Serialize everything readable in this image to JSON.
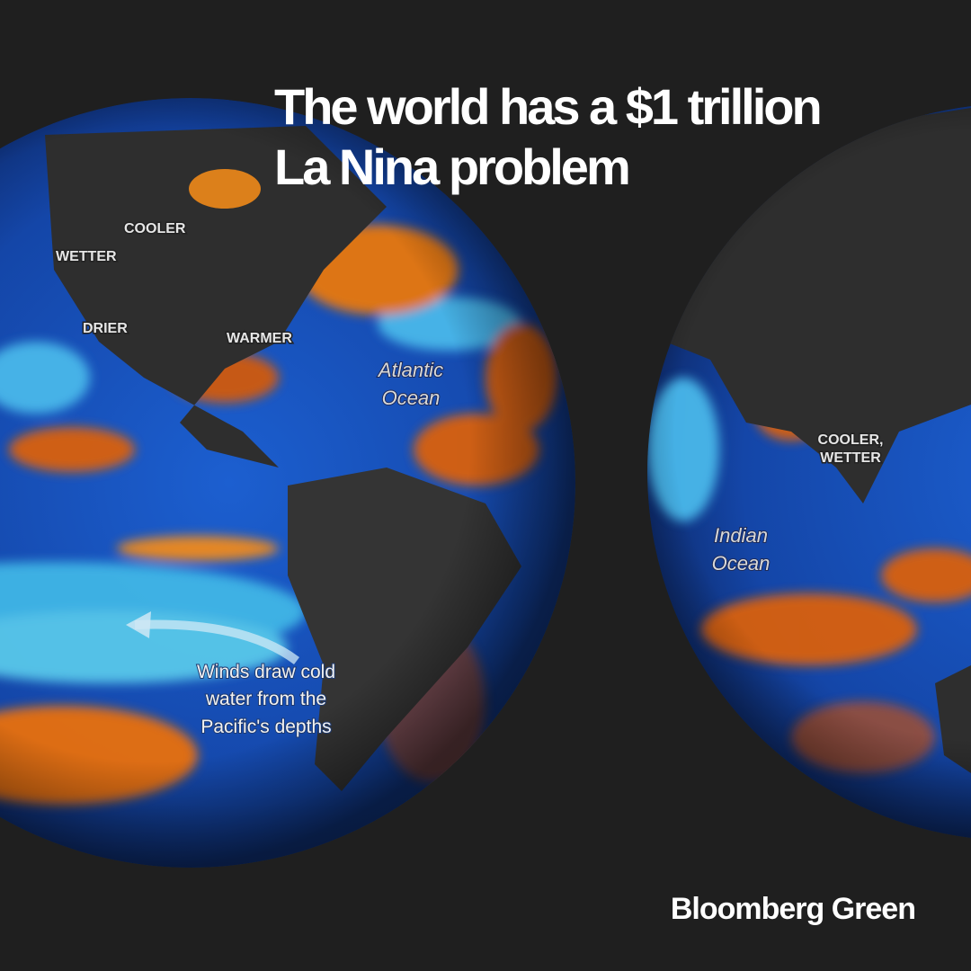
{
  "title": {
    "lines": [
      "The world has a $1 trillion",
      "La Nina problem"
    ]
  },
  "left_globe": {
    "labels": [
      "COOLER",
      "WETTER",
      "DRIER",
      "WARMER"
    ],
    "ocean_label": [
      "Atlantic",
      "Ocean"
    ],
    "annotation": [
      "Winds draw cold",
      "water from the",
      "Pacific's depths"
    ]
  },
  "right_globe": {
    "label": [
      "COOLER,",
      "WETTER"
    ],
    "ocean_label": [
      "Indian",
      "Ocean"
    ]
  },
  "brand": "Bloomberg Green"
}
